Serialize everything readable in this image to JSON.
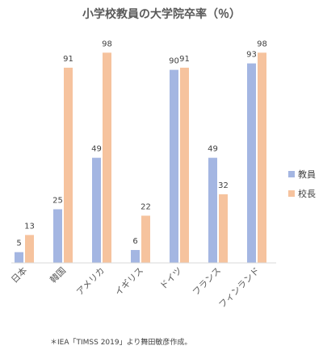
{
  "chart_data": {
    "type": "bar",
    "title": "小学校教員の大学院卒率（％）",
    "categories": [
      "日本",
      "韓国",
      "アメリカ",
      "イギリス",
      "ドイツ",
      "フランス",
      "フィンランド"
    ],
    "series": [
      {
        "name": "教員",
        "color": "#a4b6e2",
        "values": [
          5,
          25,
          49,
          6,
          90,
          49,
          93
        ]
      },
      {
        "name": "校長",
        "color": "#f6c39e",
        "values": [
          13,
          91,
          98,
          22,
          91,
          32,
          98
        ]
      }
    ],
    "ylim": [
      0,
      100
    ],
    "grid": false,
    "legend_position": "right"
  },
  "source": "＊IEA「TIMSS 2019」より舞田敏彦作成。"
}
